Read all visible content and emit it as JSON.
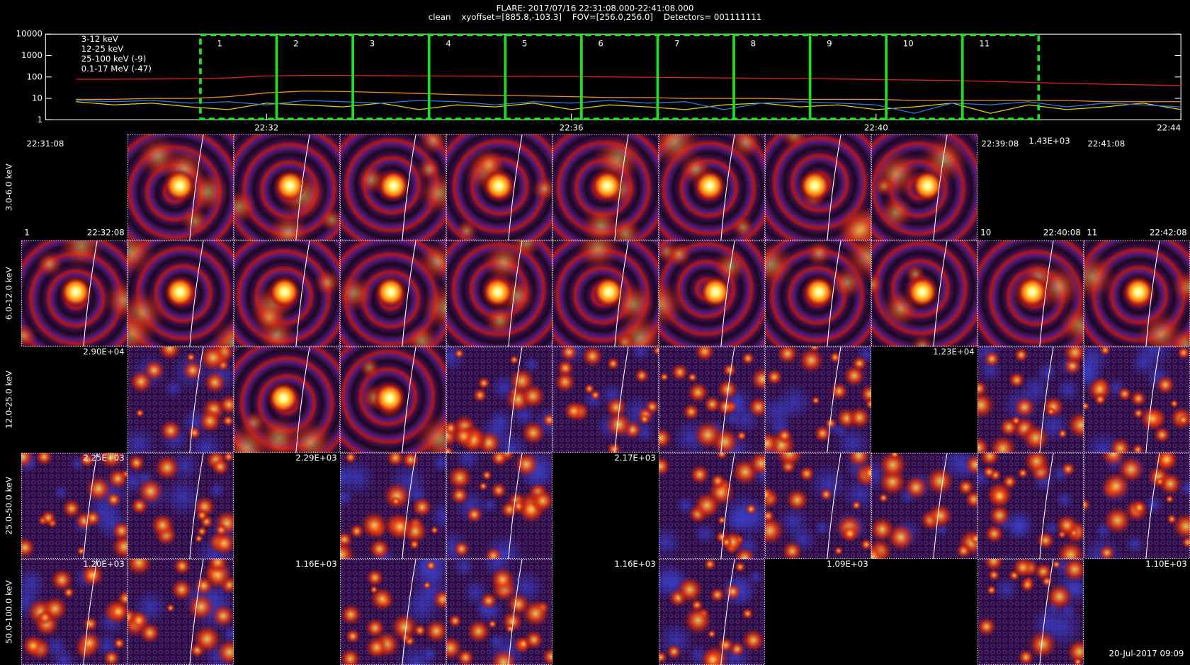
{
  "header": {
    "title": "FLARE: 2017/07/16 22:31:08.000-22:41:08.000",
    "subtitle": "clean    xyoffset=[885.8,-103.3]    FOV=[256.0,256.0]    Detectors= 001111111"
  },
  "chart_data": {
    "type": "line",
    "log_y": true,
    "xlim": [
      29.1,
      44.0
    ],
    "xticks": [
      {
        "value": 32,
        "label": "22:32"
      },
      {
        "value": 36,
        "label": "22:36"
      },
      {
        "value": 40,
        "label": "22:40"
      },
      {
        "value": 44,
        "label": "22:44"
      }
    ],
    "ylim": [
      1,
      10000
    ],
    "yticks": [
      1,
      10,
      100,
      1000,
      10000
    ],
    "x": [
      29.5,
      30,
      30.5,
      31,
      31.5,
      32,
      32.5,
      33,
      33.5,
      34,
      34.5,
      35,
      35.5,
      36,
      36.5,
      37,
      37.5,
      38,
      38.5,
      39,
      39.5,
      40,
      40.5,
      41,
      41.5,
      42,
      42.5,
      43,
      43.5,
      44
    ],
    "series": [
      {
        "name": "3-12 keV",
        "color": "#e0201f",
        "values": [
          78,
          78,
          80,
          82,
          90,
          112,
          118,
          118,
          115,
          112,
          110,
          108,
          106,
          104,
          100,
          97,
          94,
          90,
          87,
          84,
          80,
          76,
          72,
          68,
          62,
          56,
          50,
          46,
          43,
          40
        ]
      },
      {
        "name": "12-25 keV",
        "color": "#f0901f",
        "values": [
          9,
          9,
          10,
          10,
          12,
          18,
          22,
          21,
          19,
          17,
          15,
          14,
          13,
          12,
          11,
          11,
          10,
          10,
          10,
          9,
          9,
          9,
          8,
          8,
          8,
          8,
          8,
          7,
          7,
          7
        ]
      },
      {
        "name": "25-100 keV (-9)",
        "color": "#e8d000",
        "values": [
          7,
          5,
          6,
          4,
          3,
          6,
          5,
          4,
          6,
          3,
          5,
          4,
          6,
          3,
          5,
          4,
          3,
          5,
          6,
          4,
          5,
          3,
          4,
          6,
          2,
          5,
          3,
          4,
          6,
          3
        ]
      },
      {
        "name": "0.1-17 MeV (-47)",
        "color": "#2c7fe0",
        "values": [
          8,
          7,
          8,
          6,
          7,
          5,
          8,
          7,
          6,
          8,
          7,
          5,
          7,
          6,
          8,
          6,
          7,
          3,
          6,
          7,
          6,
          5,
          2,
          6,
          5,
          7,
          4,
          6,
          5,
          4
        ]
      }
    ],
    "intervals": [
      "1",
      "2",
      "3",
      "4",
      "5",
      "6",
      "7",
      "8",
      "9",
      "10",
      "11"
    ],
    "interval_edges": [
      31.133,
      32.133,
      33.133,
      34.133,
      35.133,
      36.133,
      37.133,
      38.133,
      39.133,
      40.133,
      41.133,
      42.133
    ],
    "interval_color": "#22dd22"
  },
  "image_grid": {
    "row_labels": [
      "3.0-6.0 keV",
      "6.0-12.0 keV",
      "12.0-25.0 keV",
      "25.0-50.0 keV",
      "50.0-100.0 keV"
    ],
    "annotations": [
      {
        "text": "22:31:08",
        "color": "#ffffff"
      },
      {
        "text": "22:39:08",
        "color": "#ffffff"
      },
      {
        "text": "1.43E+03",
        "color": "#22dd22"
      },
      {
        "text": "22:41:08",
        "color": "#ffffff"
      },
      {
        "text": "1",
        "color": "#22dd22"
      },
      {
        "text": "22:32:08",
        "color": "#ffffff"
      },
      {
        "text": "10",
        "color": "#22dd22"
      },
      {
        "text": "22:40:08",
        "color": "#ffffff"
      },
      {
        "text": "11",
        "color": "#22dd22"
      },
      {
        "text": "22:42:08",
        "color": "#ffffff"
      },
      {
        "text": "2.90E+04",
        "color": "#22dd22"
      },
      {
        "text": "1.23E+04",
        "color": "#22dd22"
      },
      {
        "text": "2.25E+03",
        "color": "#22dd22"
      },
      {
        "text": "2.29E+03",
        "color": "#22dd22"
      },
      {
        "text": "2.17E+03",
        "color": "#22dd22"
      },
      {
        "text": "1.20E+03",
        "color": "#22dd22"
      },
      {
        "text": "1.16E+03",
        "color": "#22dd22"
      },
      {
        "text": "1.16E+03",
        "color": "#22dd22"
      },
      {
        "text": "1.09E+03",
        "color": "#22dd22"
      },
      {
        "text": "1.10E+03",
        "color": "#22dd22"
      }
    ]
  },
  "footer": {
    "timestamp": "20-Jul-2017 09:09"
  }
}
